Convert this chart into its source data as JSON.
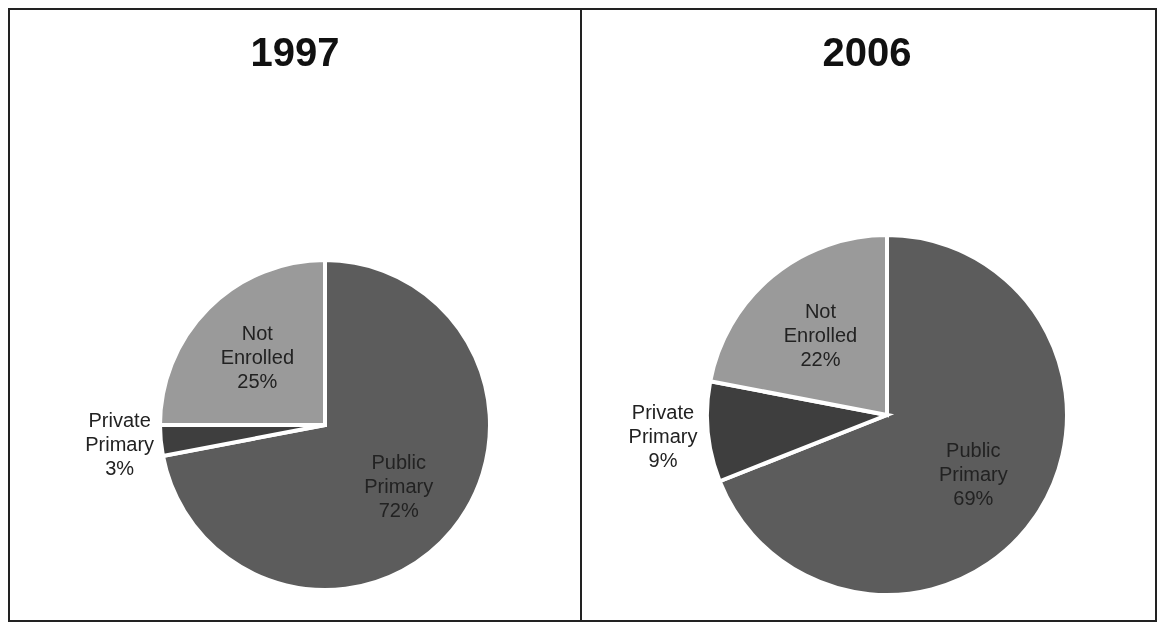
{
  "chart_data": [
    {
      "type": "pie",
      "title": "1997",
      "categories": [
        "Public Primary",
        "Private Primary",
        "Not Enrolled"
      ],
      "values": [
        72,
        3,
        25
      ],
      "value_labels": [
        "72%",
        "3%",
        "25%"
      ],
      "colors": [
        "#5c5c5c",
        "#3e3e3e",
        "#9a9a9a"
      ],
      "legend": false
    },
    {
      "type": "pie",
      "title": "2006",
      "categories": [
        "Public Primary",
        "Private Primary",
        "Not Enrolled"
      ],
      "values": [
        69,
        9,
        22
      ],
      "value_labels": [
        "69%",
        "9%",
        "22%"
      ],
      "colors": [
        "#5c5c5c",
        "#3e3e3e",
        "#9a9a9a"
      ],
      "legend": false
    }
  ]
}
